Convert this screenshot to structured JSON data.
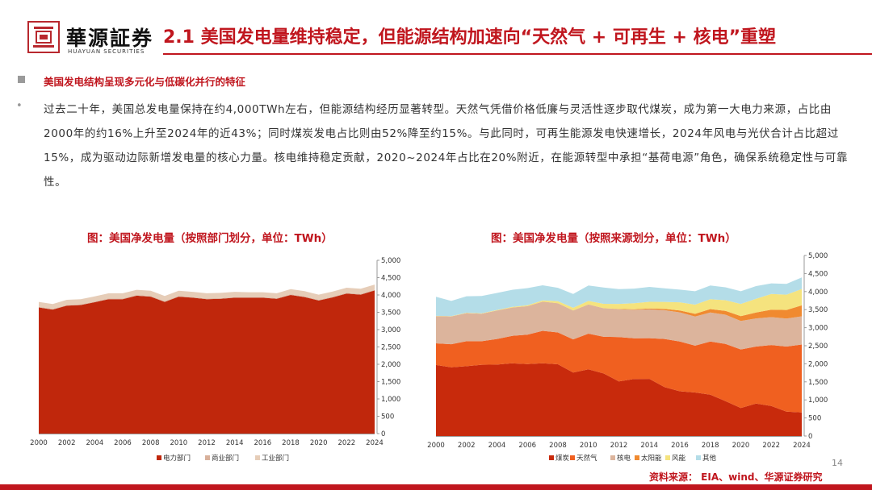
{
  "header": {
    "logo_cn": "華源証券",
    "logo_en": "HUAYUAN SECURITIES",
    "title": "2.1 美国发电量维持稳定，但能源结构加速向“天然气 + 可再生 + 核电”重塑"
  },
  "section": {
    "subheading": "美国发电结构呈现多元化与低碳化并行的特征",
    "body": "过去二十年，美国总发电量保持在约4,000TWh左右，但能源结构经历显著转型。天然气凭借价格低廉与灵活性逐步取代煤炭，成为第一大电力来源，占比由2000年的约16%上升至2024年的近43%；同时煤炭发电占比则由52%降至约15%。与此同时，可再生能源发电快速增长，2024年风电与光伏合计占比超过15%，成为驱动边际新增发电量的核心力量。核电维持稳定贡献，2020~2024年占比在20%附近，在能源转型中承担“基荷电源”角色，确保系统稳定性与可靠性。"
  },
  "colors": {
    "brand_red": "#c0161e",
    "power": "#c0270c",
    "commercial": "#d8b09a",
    "industrial": "#e6cdb8",
    "coal": "#c82a0c",
    "gas": "#f06020",
    "nuclear": "#dcb49c",
    "solar": "#f08a30",
    "wind": "#f5e37e",
    "other": "#b4dde8"
  },
  "chart_data": [
    {
      "type": "area",
      "stacked": true,
      "title": "图：美国净发电量（按照部门划分，单位：TWh）",
      "x": [
        2000,
        2001,
        2002,
        2003,
        2004,
        2005,
        2006,
        2007,
        2008,
        2009,
        2010,
        2011,
        2012,
        2013,
        2014,
        2015,
        2016,
        2017,
        2018,
        2019,
        2020,
        2021,
        2022,
        2023,
        2024
      ],
      "xticks": [
        "2000",
        "2002",
        "2004",
        "2006",
        "2008",
        "2010",
        "2012",
        "2014",
        "2016",
        "2018",
        "2020",
        "2022",
        "2024"
      ],
      "yticks": [
        "0",
        "500",
        "1,000",
        "1,500",
        "2,000",
        "2,500",
        "3,000",
        "3,500",
        "4,000",
        "4,500",
        "5,000"
      ],
      "ylim": [
        0,
        5000
      ],
      "series": [
        {
          "name": "电力部门",
          "color": "#c0270c",
          "values": [
            3640,
            3580,
            3690,
            3710,
            3790,
            3880,
            3880,
            3980,
            3950,
            3800,
            3950,
            3920,
            3880,
            3890,
            3920,
            3920,
            3920,
            3890,
            4000,
            3940,
            3840,
            3930,
            4040,
            4010,
            4130
          ]
        },
        {
          "name": "商业部门",
          "color": "#d8b09a",
          "values": [
            20,
            20,
            20,
            20,
            20,
            20,
            20,
            20,
            20,
            20,
            20,
            20,
            20,
            20,
            20,
            20,
            20,
            20,
            20,
            20,
            20,
            20,
            20,
            20,
            20
          ]
        },
        {
          "name": "工业部门",
          "color": "#e6cdb8",
          "values": [
            140,
            140,
            150,
            150,
            150,
            150,
            150,
            150,
            150,
            150,
            150,
            150,
            150,
            150,
            150,
            140,
            140,
            140,
            150,
            150,
            150,
            150,
            150,
            150,
            150
          ]
        }
      ]
    },
    {
      "type": "area",
      "stacked": true,
      "title": "图：美国净发电量（按照来源划分，单位：TWh）",
      "x": [
        2000,
        2001,
        2002,
        2003,
        2004,
        2005,
        2006,
        2007,
        2008,
        2009,
        2010,
        2011,
        2012,
        2013,
        2014,
        2015,
        2016,
        2017,
        2018,
        2019,
        2020,
        2021,
        2022,
        2023,
        2024
      ],
      "xticks": [
        "2000",
        "2002",
        "2004",
        "2006",
        "2008",
        "2010",
        "2012",
        "2014",
        "2016",
        "2018",
        "2020",
        "2022",
        "2024"
      ],
      "yticks": [
        "0",
        "500",
        "1,000",
        "1,500",
        "2,000",
        "2,500",
        "3,000",
        "3,500",
        "4,000",
        "4,500",
        "5,000"
      ],
      "ylim": [
        0,
        5000
      ],
      "series": [
        {
          "name": "煤炭",
          "color": "#c82a0c",
          "values": [
            1966,
            1904,
            1933,
            1974,
            1978,
            2013,
            1991,
            2016,
            1986,
            1756,
            1847,
            1733,
            1514,
            1581,
            1582,
            1352,
            1239,
            1206,
            1146,
            965,
            774,
            898,
            832,
            675,
            653
          ]
        },
        {
          "name": "天然气",
          "color": "#f06020",
          "values": [
            601,
            639,
            691,
            650,
            710,
            761,
            816,
            897,
            883,
            921,
            988,
            1014,
            1226,
            1125,
            1127,
            1335,
            1379,
            1296,
            1469,
            1586,
            1624,
            1579,
            1689,
            1802,
            1880
          ]
        },
        {
          "name": "核电",
          "color": "#dcb49c",
          "values": [
            754,
            769,
            780,
            764,
            789,
            782,
            787,
            806,
            806,
            799,
            807,
            790,
            769,
            789,
            797,
            797,
            805,
            805,
            807,
            809,
            790,
            779,
            772,
            775,
            782
          ]
        },
        {
          "name": "太阳能",
          "color": "#f08a30",
          "values": [
            1,
            1,
            1,
            1,
            1,
            1,
            1,
            1,
            2,
            2,
            3,
            4,
            9,
            16,
            28,
            39,
            54,
            77,
            93,
            107,
            132,
            164,
            205,
            238,
            303
          ]
        },
        {
          "name": "风能",
          "color": "#f5e37e",
          "values": [
            6,
            7,
            10,
            11,
            14,
            18,
            27,
            34,
            55,
            74,
            95,
            120,
            141,
            168,
            182,
            191,
            227,
            254,
            273,
            295,
            338,
            378,
            435,
            425,
            453
          ]
        },
        {
          "name": "其他",
          "color": "#b4dde8",
          "values": [
            530,
            420,
            455,
            480,
            470,
            475,
            475,
            419,
            374,
            380,
            430,
            450,
            410,
            403,
            413,
            376,
            350,
            370,
            380,
            357,
            352,
            353,
            295,
            300,
            320
          ]
        }
      ]
    }
  ],
  "footer": {
    "page_number": "14",
    "source": "资料来源： EIA、wind、华源证券研究"
  }
}
